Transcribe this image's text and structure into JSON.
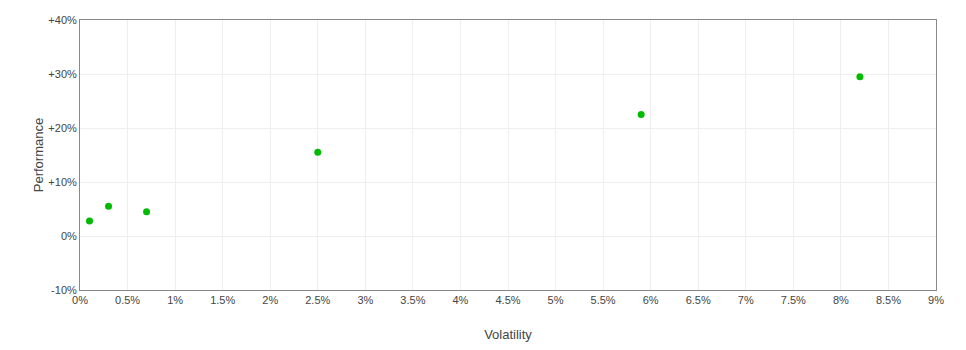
{
  "chart_data": {
    "type": "scatter",
    "xlabel": "Volatility",
    "ylabel": "Performance",
    "x": [
      0.001,
      0.003,
      0.007,
      0.025,
      0.059,
      0.082
    ],
    "values": [
      0.028,
      0.055,
      0.045,
      0.155,
      0.225,
      0.295
    ],
    "color": "#00bb00",
    "xlim": [
      0,
      0.09
    ],
    "ylim": [
      -0.1,
      0.4
    ],
    "xticks": [
      {
        "value": 0,
        "label": "0%"
      },
      {
        "value": 0.005,
        "label": "0.5%"
      },
      {
        "value": 0.01,
        "label": "1%"
      },
      {
        "value": 0.015,
        "label": "1.5%"
      },
      {
        "value": 0.02,
        "label": "2%"
      },
      {
        "value": 0.025,
        "label": "2.5%"
      },
      {
        "value": 0.03,
        "label": "3%"
      },
      {
        "value": 0.035,
        "label": "3.5%"
      },
      {
        "value": 0.04,
        "label": "4%"
      },
      {
        "value": 0.045,
        "label": "4.5%"
      },
      {
        "value": 0.05,
        "label": "5%"
      },
      {
        "value": 0.055,
        "label": "5.5%"
      },
      {
        "value": 0.06,
        "label": "6%"
      },
      {
        "value": 0.065,
        "label": "6.5%"
      },
      {
        "value": 0.07,
        "label": "7%"
      },
      {
        "value": 0.075,
        "label": "7.5%"
      },
      {
        "value": 0.08,
        "label": "8%"
      },
      {
        "value": 0.085,
        "label": "8.5%"
      },
      {
        "value": 0.09,
        "label": "9%"
      }
    ],
    "yticks": [
      {
        "value": -0.1,
        "label": "-10%"
      },
      {
        "value": 0.0,
        "label": "0%"
      },
      {
        "value": 0.1,
        "label": "+10%"
      },
      {
        "value": 0.2,
        "label": "+20%"
      },
      {
        "value": 0.3,
        "label": "+30%"
      },
      {
        "value": 0.4,
        "label": "+40%"
      }
    ],
    "grid": true
  }
}
